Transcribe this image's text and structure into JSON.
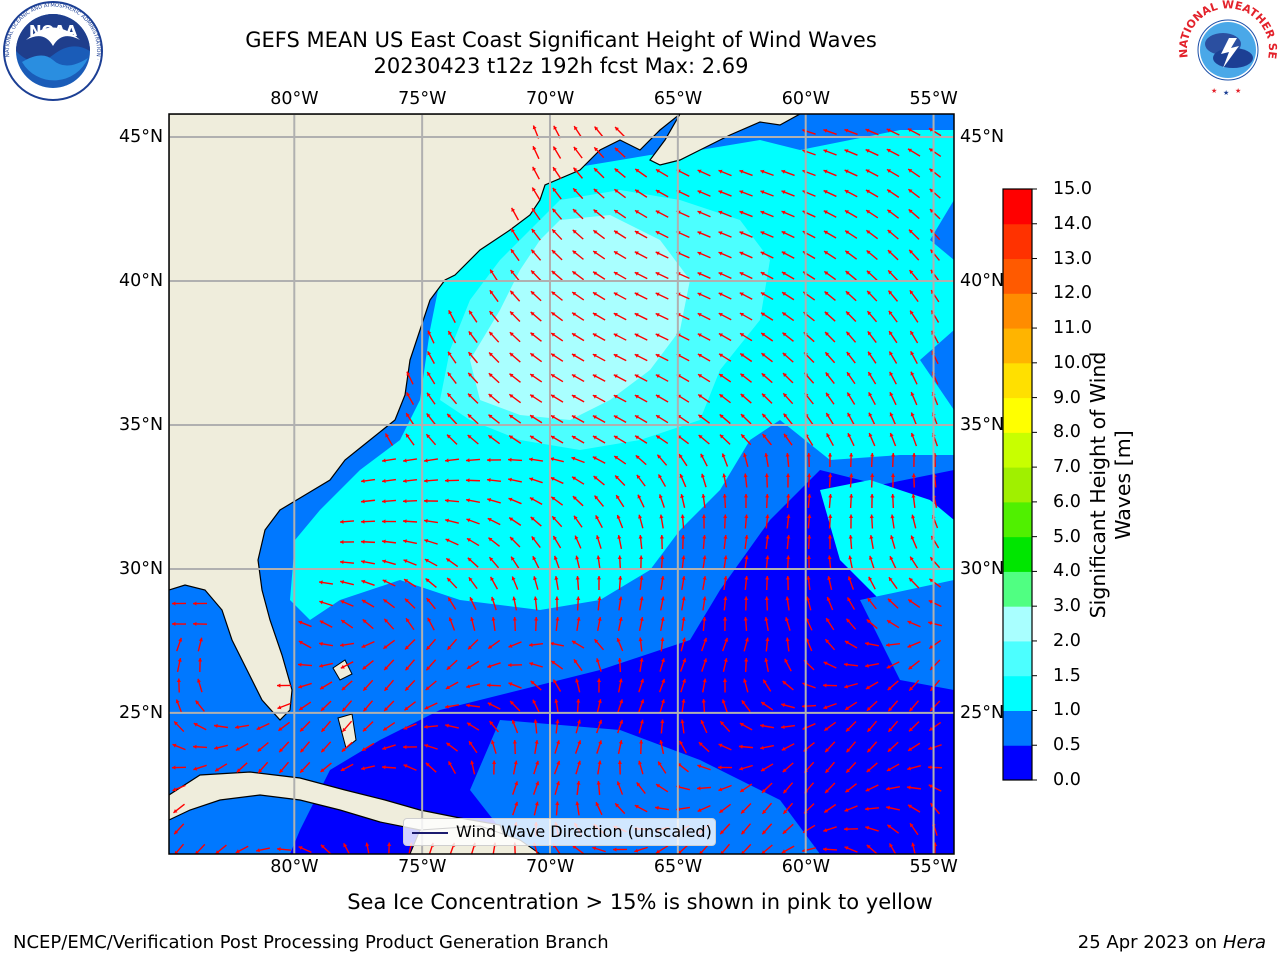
{
  "header": {
    "title_line1": "GEFS MEAN US East Coast Significant Height of Wind Waves",
    "title_line2": "20230423 t12z 192h fcst    Max: 2.69"
  },
  "logos": {
    "left": {
      "name": "NOAA",
      "text": "NOAA",
      "ring_text": "NATIONAL OCEANIC AND ATMOSPHERIC ADMINISTRATION · U.S. DEPARTMENT OF COMMERCE"
    },
    "right": {
      "name": "National Weather Service",
      "ring_text": "NATIONAL WEATHER SERVICE"
    }
  },
  "map": {
    "lon_labels": [
      "80°W",
      "75°W",
      "70°W",
      "65°W",
      "60°W",
      "55°W"
    ],
    "lat_labels": [
      "45°N",
      "40°N",
      "35°N",
      "30°N",
      "25°N"
    ],
    "extent": {
      "lon_min": -84.9,
      "lon_max": -54.2,
      "lat_min": 20.1,
      "lat_max": 45.8
    },
    "gridlines": true,
    "colors": {
      "land": "#efeddc",
      "coast": "#000000",
      "arrow": "#ff0000",
      "grid": "#b0b0b0"
    }
  },
  "legend": {
    "label": "Wind Wave Direction (unscaled)"
  },
  "colorbar": {
    "title": "Significant Height of Wind Waves [m]",
    "ticks": [
      "0.0",
      "0.5",
      "1.0",
      "1.5",
      "2.0",
      "3.0",
      "4.0",
      "5.0",
      "6.0",
      "7.0",
      "8.0",
      "9.0",
      "10.0",
      "11.0",
      "12.0",
      "13.0",
      "14.0",
      "15.0"
    ],
    "colors": [
      "#0000ff",
      "#0078ff",
      "#00ffff",
      "#4cffff",
      "#a9ffff",
      "#50ff82",
      "#00e600",
      "#50f000",
      "#a0f000",
      "#c8ff00",
      "#ffff00",
      "#ffe000",
      "#ffb400",
      "#ff8c00",
      "#ff5a00",
      "#ff3200",
      "#ff0000"
    ]
  },
  "footer": {
    "sea_ice_note": "Sea Ice Concentration > 15% is shown in pink to yellow",
    "left": "NCEP/EMC/Verification Post Processing Product Generation Branch",
    "right_date": "25 Apr 2023 on",
    "right_host": "Hera"
  }
}
